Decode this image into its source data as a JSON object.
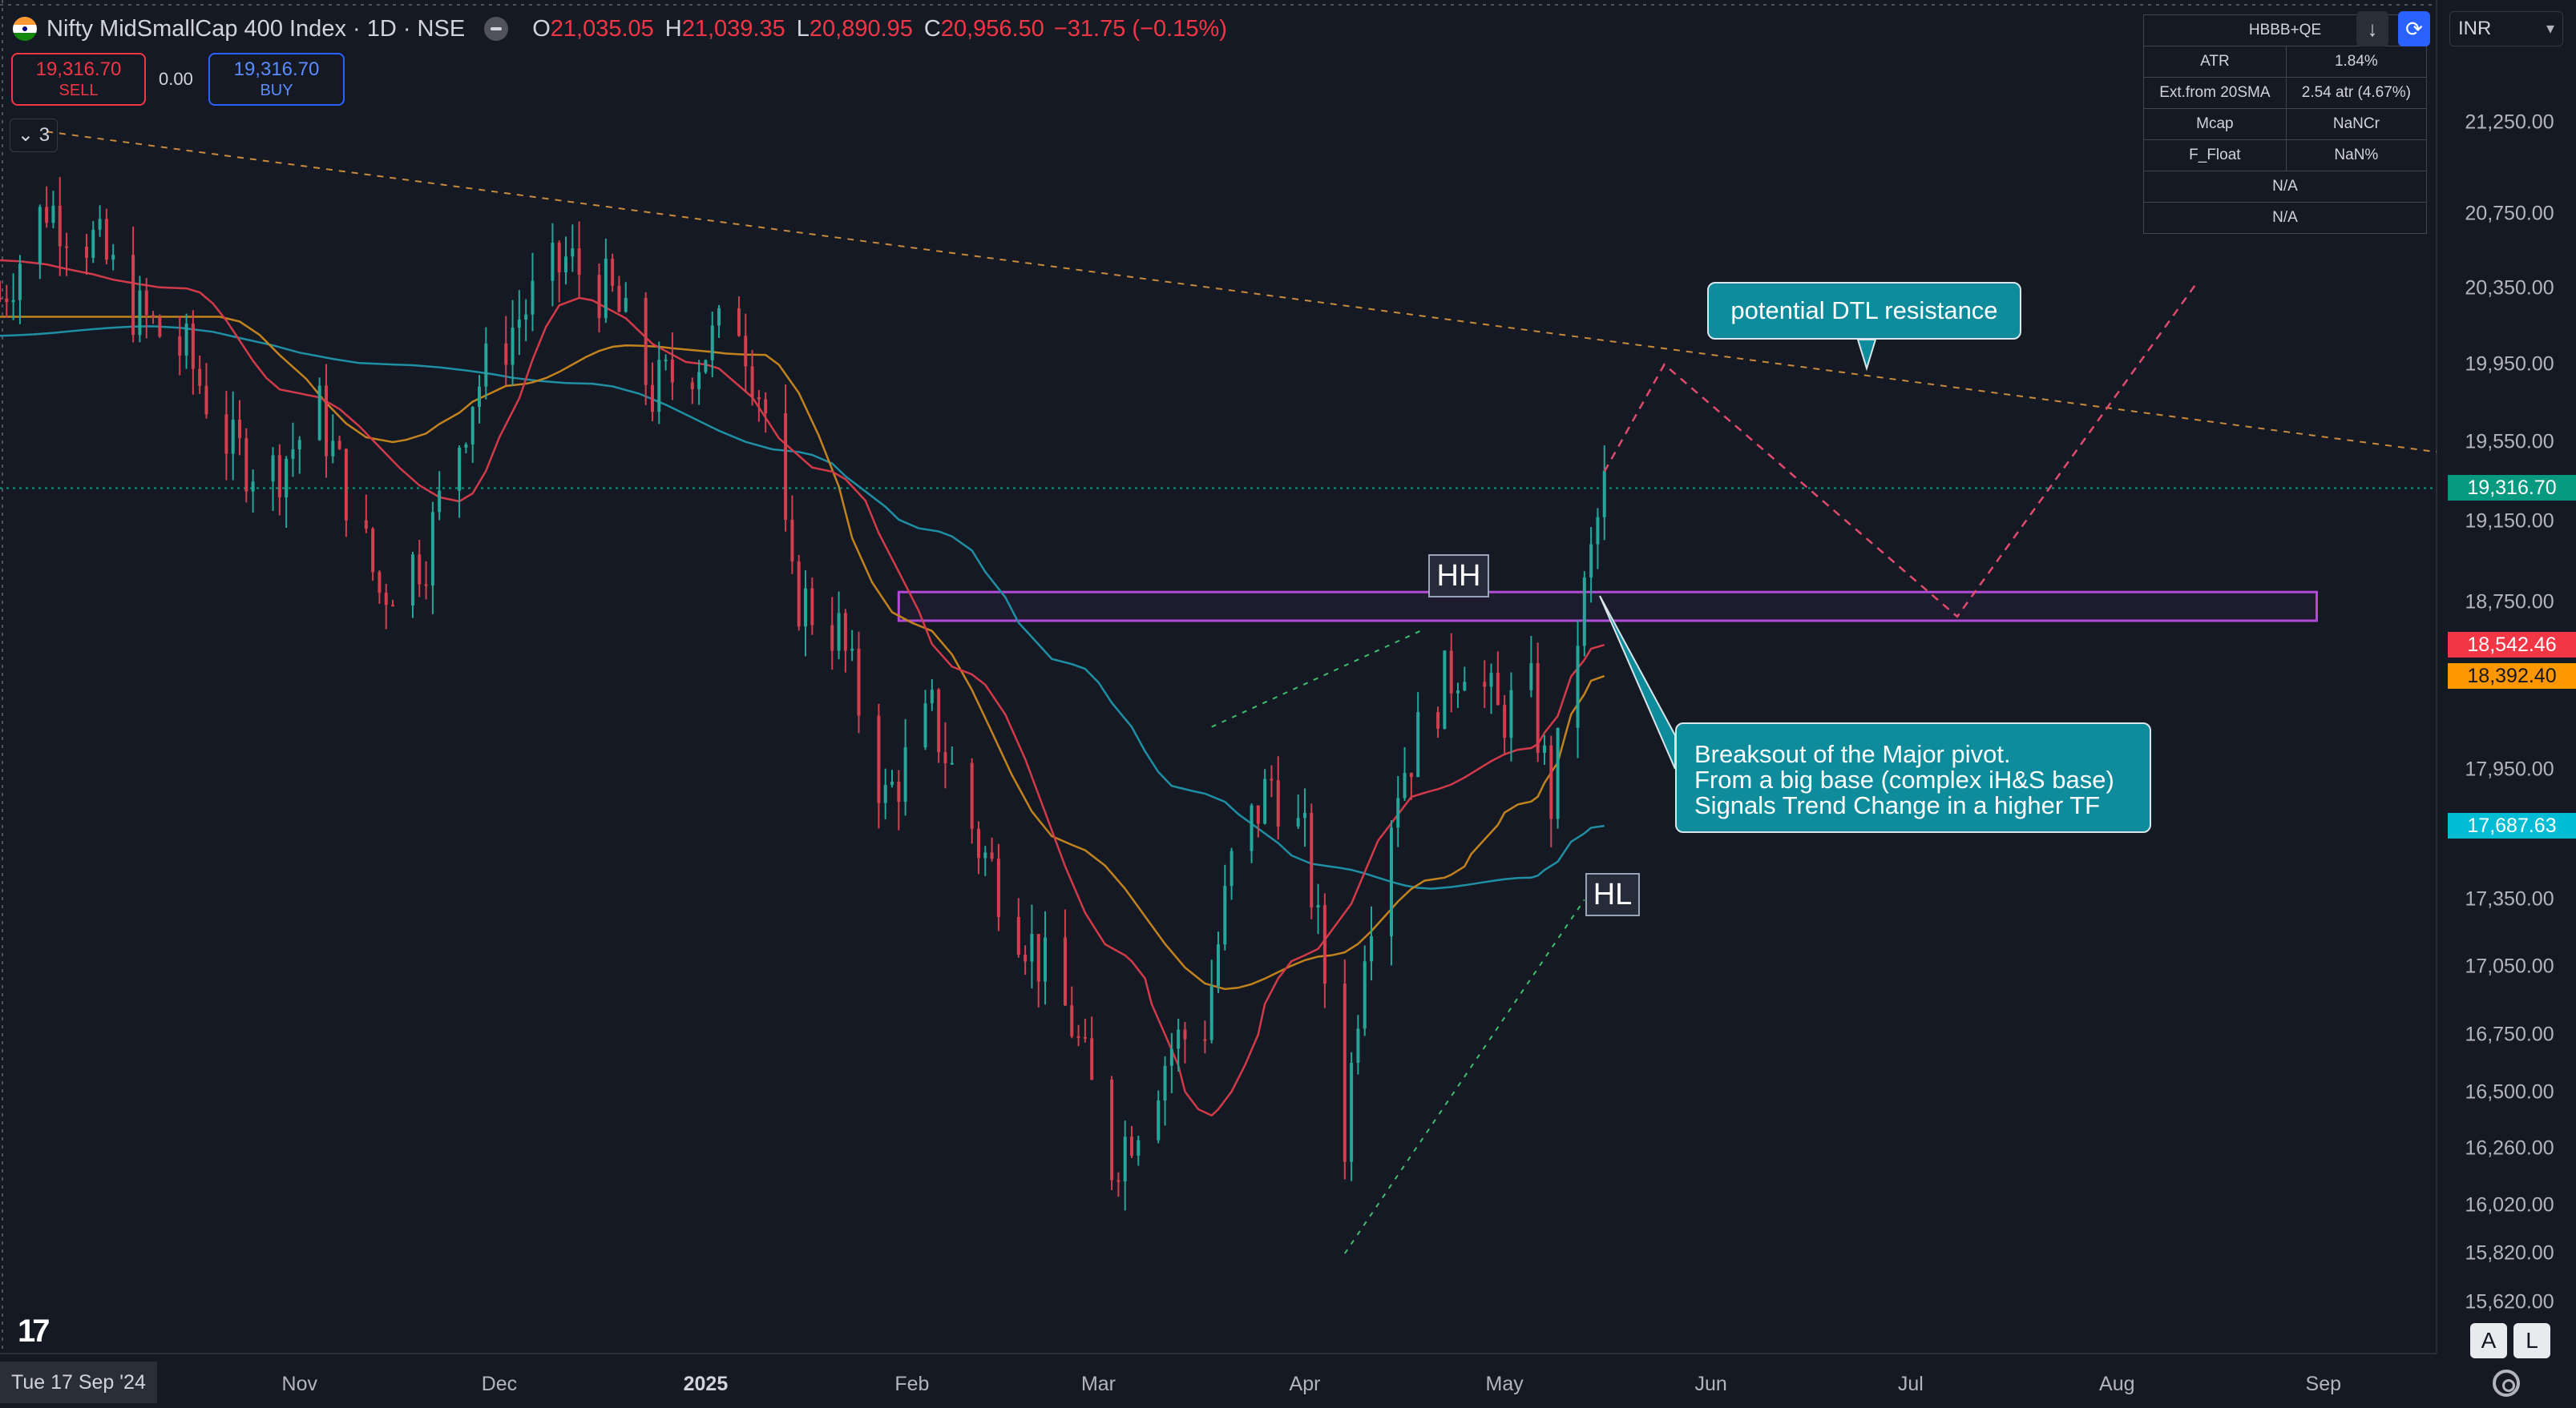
{
  "header": {
    "title": "Nifty MidSmallCap 400 Index · 1D · NSE",
    "ohlc": [
      {
        "label": "O",
        "value": "21,035.05"
      },
      {
        "label": "H",
        "value": "21,039.35"
      },
      {
        "label": "L",
        "value": "20,890.95"
      },
      {
        "label": "C",
        "value": "20,956.50"
      }
    ],
    "change": "−31.75 (−0.15%)"
  },
  "trade": {
    "sell_price": "19,316.70",
    "sell_label": "SELL",
    "spread": "0.00",
    "buy_price": "19,316.70",
    "buy_label": "BUY"
  },
  "indicator_count": "3",
  "info_table": {
    "title": "HBBB+QE",
    "rows": [
      {
        "k": "ATR",
        "v": "1.84%"
      },
      {
        "k": "Ext.from 20SMA",
        "v": "2.54 atr (4.67%)"
      },
      {
        "k": "Mcap",
        "v": "NaNCr"
      },
      {
        "k": "F_Float",
        "v": "NaN%"
      }
    ],
    "na1": "N/A",
    "na2": "N/A"
  },
  "currency": "INR",
  "top_buttons": {
    "down_icon": "arrow-down-icon",
    "sync_icon": "sync-icon"
  },
  "price_tags": {
    "last": {
      "value": "19,316.70",
      "color": "#089981"
    },
    "red": {
      "value": "18,542.46",
      "color": "#f23645"
    },
    "orange": {
      "value": "18,392.40",
      "color": "#ff9800"
    },
    "teal": {
      "value": "17,687.63",
      "color": "#00bcd4"
    }
  },
  "annotations": {
    "dtl": "potential DTL resistance",
    "breakout_lines": [
      "Breaksout of the Major pivot.",
      "From a big base (complex iH&S base)",
      "Signals Trend Change in a higher TF"
    ],
    "hh": "HH",
    "hl": "HL"
  },
  "date_cursor": "Tue 17 Sep '24",
  "scale_buttons": {
    "auto": "A",
    "log": "L"
  },
  "colors": {
    "background": "#151924",
    "up": "#26a69a",
    "down": "#f23645",
    "sma_fast": "#f23645",
    "sma_mid": "#ff9800",
    "sma_slow": "#00bcd4",
    "pivot_box": "#b04cd6"
  },
  "chart_data": {
    "type": "candlestick",
    "symbol": "Nifty MidSmallCap 400 Index",
    "timeframe": "1D",
    "y_axis_ticks": [
      21250,
      20750,
      20350,
      19950,
      19550,
      19150,
      18750,
      17950,
      17350,
      17050,
      16750,
      16500,
      16260,
      16020,
      15820,
      15620
    ],
    "y_tick_labels": [
      "21,250.00",
      "20,750.00",
      "20,350.00",
      "19,950.00",
      "19,550.00",
      "19,150.00",
      "18,750.00",
      "17,950.00",
      "17,350.00",
      "17,050.00",
      "16,750.00",
      "16,500.00",
      "16,260.00",
      "16,020.00",
      "15,820.00",
      "15,620.00"
    ],
    "y_scale": "log",
    "x_axis_labels": [
      {
        "label": "Nov",
        "date": "2024-11-01"
      },
      {
        "label": "Dec",
        "date": "2024-12-01"
      },
      {
        "label": "2025",
        "date": "2025-01-01",
        "major": true
      },
      {
        "label": "Feb",
        "date": "2025-02-01"
      },
      {
        "label": "Mar",
        "date": "2025-03-01"
      },
      {
        "label": "Apr",
        "date": "2025-04-01"
      },
      {
        "label": "May",
        "date": "2025-05-01"
      },
      {
        "label": "Jun",
        "date": "2025-06-01"
      },
      {
        "label": "Jul",
        "date": "2025-07-01"
      },
      {
        "label": "Aug",
        "date": "2025-08-01"
      },
      {
        "label": "Sep",
        "date": "2025-09-01"
      }
    ],
    "x_range": [
      "2024-09-17",
      "2025-09-18"
    ],
    "price_path": [
      [
        "2024-09-17",
        20300
      ],
      [
        "2024-09-24",
        20800
      ],
      [
        "2024-10-01",
        20600
      ],
      [
        "2024-10-08",
        20200
      ],
      [
        "2024-10-15",
        20000
      ],
      [
        "2024-10-22",
        19500
      ],
      [
        "2024-10-28",
        19400
      ],
      [
        "2024-11-04",
        19700
      ],
      [
        "2024-11-13",
        18800
      ],
      [
        "2024-11-20",
        19000
      ],
      [
        "2024-11-27",
        19800
      ],
      [
        "2024-12-04",
        20200
      ],
      [
        "2024-12-11",
        20500
      ],
      [
        "2024-12-18",
        20300
      ],
      [
        "2024-12-24",
        19800
      ],
      [
        "2024-12-31",
        20000
      ],
      [
        "2025-01-06",
        20200
      ],
      [
        "2025-01-10",
        19700
      ],
      [
        "2025-01-14",
        18800
      ],
      [
        "2025-01-21",
        18600
      ],
      [
        "2025-01-28",
        17800
      ],
      [
        "2025-02-04",
        18200
      ],
      [
        "2025-02-11",
        17600
      ],
      [
        "2025-02-18",
        17200
      ],
      [
        "2025-02-25",
        16800
      ],
      [
        "2025-03-03",
        16200
      ],
      [
        "2025-03-07",
        16400
      ],
      [
        "2025-03-12",
        16700
      ],
      [
        "2025-03-17",
        16800
      ],
      [
        "2025-03-21",
        17500
      ],
      [
        "2025-03-27",
        17900
      ],
      [
        "2025-04-01",
        17600
      ],
      [
        "2025-04-04",
        17000
      ],
      [
        "2025-04-07",
        16300
      ],
      [
        "2025-04-10",
        17200
      ],
      [
        "2025-04-15",
        17900
      ],
      [
        "2025-04-21",
        18300
      ],
      [
        "2025-04-25",
        18500
      ],
      [
        "2025-04-30",
        18200
      ],
      [
        "2025-05-05",
        18300
      ],
      [
        "2025-05-08",
        17800
      ],
      [
        "2025-05-12",
        18600
      ],
      [
        "2025-05-15",
        19150
      ],
      [
        "2025-05-16",
        19316.7
      ]
    ],
    "sma_fast": [
      [
        "2024-09-17",
        20500
      ],
      [
        "2024-10-15",
        20350
      ],
      [
        "2024-11-01",
        19800
      ],
      [
        "2024-11-25",
        19250
      ],
      [
        "2024-12-13",
        20300
      ],
      [
        "2025-01-01",
        19950
      ],
      [
        "2025-01-20",
        19400
      ],
      [
        "2025-02-10",
        18400
      ],
      [
        "2025-03-05",
        17100
      ],
      [
        "2025-03-18",
        16400
      ],
      [
        "2025-04-01",
        17100
      ],
      [
        "2025-04-20",
        17850
      ],
      [
        "2025-05-05",
        18050
      ],
      [
        "2025-05-16",
        18542.46
      ]
    ],
    "sma_mid": [
      [
        "2024-09-17",
        20200
      ],
      [
        "2024-10-20",
        20200
      ],
      [
        "2024-11-15",
        19550
      ],
      [
        "2024-12-05",
        19850
      ],
      [
        "2024-12-20",
        20050
      ],
      [
        "2025-01-10",
        20000
      ],
      [
        "2025-02-01",
        18650
      ],
      [
        "2025-02-25",
        17600
      ],
      [
        "2025-03-20",
        16950
      ],
      [
        "2025-04-05",
        17100
      ],
      [
        "2025-04-22",
        17450
      ],
      [
        "2025-05-05",
        17800
      ],
      [
        "2025-05-16",
        18392.4
      ]
    ],
    "sma_slow": [
      [
        "2024-09-17",
        20100
      ],
      [
        "2024-10-10",
        20150
      ],
      [
        "2024-11-15",
        19950
      ],
      [
        "2024-12-15",
        19850
      ],
      [
        "2025-01-15",
        19500
      ],
      [
        "2025-02-05",
        19100
      ],
      [
        "2025-02-25",
        18450
      ],
      [
        "2025-03-15",
        17850
      ],
      [
        "2025-04-05",
        17500
      ],
      [
        "2025-04-20",
        17400
      ],
      [
        "2025-05-05",
        17450
      ],
      [
        "2025-05-16",
        17687.63
      ]
    ],
    "pivot_zone": {
      "from": "2025-01-30",
      "to": "2025-08-31",
      "low": 18660,
      "high": 18800
    },
    "dtl_line": [
      [
        "2024-09-24",
        21200
      ],
      [
        "2025-09-18",
        19500
      ]
    ],
    "projection": [
      [
        "2025-05-16",
        19400
      ],
      [
        "2025-05-25",
        19950
      ],
      [
        "2025-07-08",
        18680
      ],
      [
        "2025-08-13",
        20380
      ]
    ],
    "hh_trendline": [
      [
        "2025-03-18",
        18150
      ],
      [
        "2025-04-19",
        18620
      ]
    ],
    "hl_trendline": [
      [
        "2025-04-07",
        15820
      ],
      [
        "2025-05-13",
        17350
      ]
    ],
    "last_price": 19316.7
  }
}
